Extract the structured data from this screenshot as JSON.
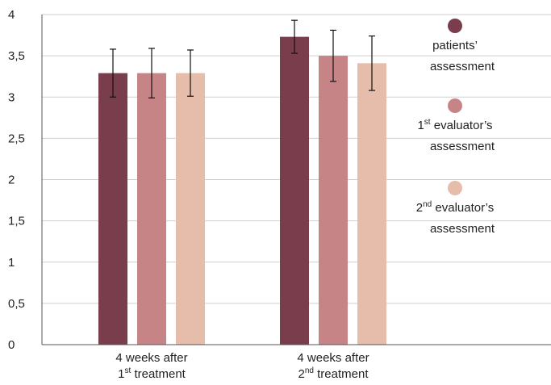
{
  "chart_data": {
    "type": "bar",
    "y_ticks": [
      "0",
      "0,5",
      "1",
      "1,5",
      "2",
      "2,5",
      "3",
      "3,5",
      "4"
    ],
    "ylim": [
      0,
      4
    ],
    "grid": true,
    "legend_position": "right",
    "categories": [
      {
        "line1": "4 weeks after",
        "line2_num": "1",
        "line2_sup": "st",
        "line2_text": " treatment"
      },
      {
        "line1": "4 weeks after",
        "line2_num": "2",
        "line2_sup": "nd",
        "line2_text": " treatment"
      }
    ],
    "series": [
      {
        "name": "patients’ assessment",
        "color": "#7a3d4b",
        "values": [
          3.29,
          3.73
        ],
        "errors": [
          0.29,
          0.2
        ],
        "legend": {
          "line1": "patients’",
          "line2": "assessment",
          "num": "",
          "sup": ""
        }
      },
      {
        "name": "1st evaluator’s assessment",
        "color": "#c78487",
        "values": [
          3.29,
          3.5
        ],
        "errors": [
          0.3,
          0.31
        ],
        "legend": {
          "num": "1",
          "sup": "st",
          "line1": " evaluator’s",
          "line2": "assessment"
        }
      },
      {
        "name": "2nd evaluator’s assessment",
        "color": "#e6bcaa",
        "values": [
          3.29,
          3.41
        ],
        "errors": [
          0.28,
          0.33
        ],
        "legend": {
          "num": "2",
          "sup": "nd",
          "line1": " evaluator’s",
          "line2": "assessment"
        }
      }
    ]
  }
}
